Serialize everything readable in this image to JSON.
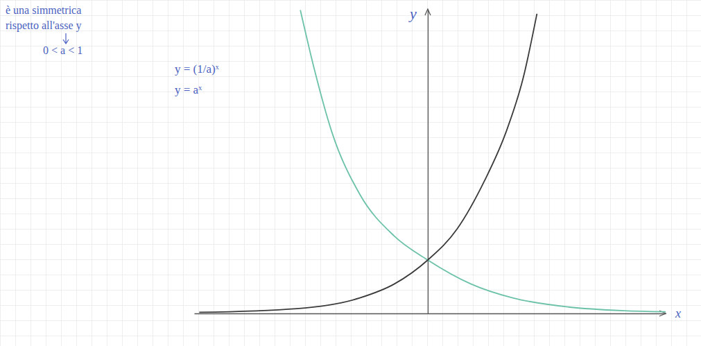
{
  "chart_data": {
    "type": "line",
    "xlabel": "x",
    "ylabel": "y",
    "annotations": [
      "è una simmetrica",
      "rispetto all'asse y",
      "0 < a < 1"
    ],
    "xlim": [
      -5.5,
      5.6
    ],
    "ylim": [
      0,
      5.7
    ],
    "tick_labels": false,
    "series": [
      {
        "name": "y = (1/a)ˣ",
        "color": "#6cc2a8",
        "x": [
          -3.0,
          -2.67,
          -2.26,
          -1.6,
          -0.79,
          0,
          1.02,
          2.0,
          3.31,
          4.62,
          5.6
        ],
        "values": [
          5.68,
          4.57,
          3.4,
          2.23,
          1.45,
          1,
          0.55,
          0.29,
          0.12,
          0.05,
          0.03
        ]
      },
      {
        "name": "y = aˣ",
        "color": "#3a3a3a",
        "x": [
          -5.38,
          -3.08,
          -1.6,
          -0.79,
          0,
          0.69,
          1.34,
          1.84,
          2.25,
          2.57
        ],
        "values": [
          0.02,
          0.09,
          0.29,
          0.55,
          1,
          1.58,
          2.49,
          3.39,
          4.42,
          5.61
        ]
      }
    ]
  }
}
